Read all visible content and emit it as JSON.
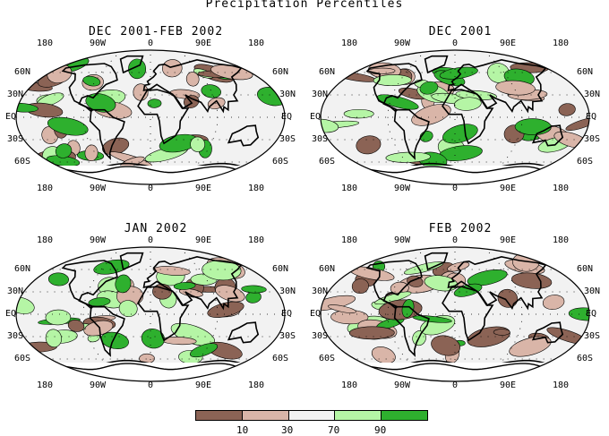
{
  "title": "Precipitation Percentiles",
  "panels": [
    {
      "title": "DEC 2001-FEB 2002"
    },
    {
      "title": "DEC 2001"
    },
    {
      "title": "JAN 2002"
    },
    {
      "title": "FEB 2002"
    }
  ],
  "lon_labels": [
    "180",
    "90W",
    "0",
    "90E",
    "180"
  ],
  "lat_labels_left": [
    "60N",
    "30N",
    "EQ",
    "30S",
    "60S"
  ],
  "lat_labels_right": [
    "60N",
    "30N",
    "EQ",
    "30S",
    "60S"
  ],
  "legend": {
    "colors": [
      "#8b6355",
      "#d9b5a8",
      "#f2f2f2",
      "#b5f5a5",
      "#2eb02e"
    ],
    "ticks": [
      "10",
      "30",
      "70",
      "90"
    ]
  }
}
